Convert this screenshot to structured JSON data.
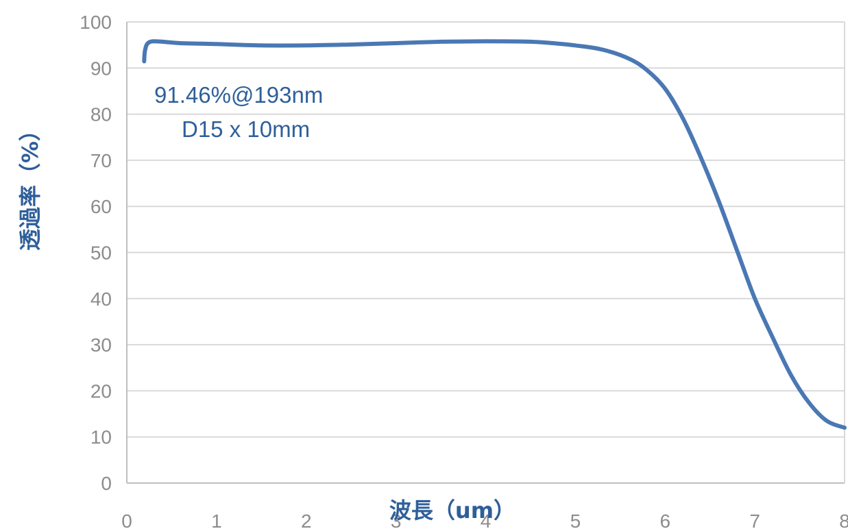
{
  "chart_data": {
    "type": "line",
    "title": "",
    "xlabel": "波長（um）",
    "ylabel": "透過率（%）",
    "xlim": [
      0,
      8
    ],
    "ylim": [
      0,
      100
    ],
    "x_ticks": [
      "0",
      "1",
      "2",
      "3",
      "4",
      "5",
      "6",
      "7",
      "8"
    ],
    "y_ticks": [
      "0",
      "10",
      "20",
      "30",
      "40",
      "50",
      "60",
      "70",
      "80",
      "90",
      "100"
    ],
    "grid": "horizontal",
    "series_color": "#4a78b4",
    "annotations": [
      "91.46%@193nm",
      "D15 x 10mm"
    ],
    "series": [
      {
        "x": [
          0.193,
          0.2,
          0.22,
          0.25,
          0.3,
          0.4,
          0.6,
          1.0,
          1.5,
          2.0,
          2.5,
          3.0,
          3.5,
          4.0,
          4.5,
          4.8,
          5.0,
          5.3,
          5.6,
          5.8,
          6.0,
          6.2,
          6.4,
          6.6,
          6.8,
          7.0,
          7.2,
          7.4,
          7.6,
          7.8,
          8.0
        ],
        "y": [
          91.46,
          93.5,
          95.0,
          95.6,
          95.8,
          95.7,
          95.4,
          95.2,
          94.9,
          94.9,
          95.1,
          95.4,
          95.7,
          95.8,
          95.7,
          95.3,
          94.9,
          94.0,
          92.0,
          89.5,
          85.5,
          79.0,
          70.5,
          61.0,
          50.5,
          40.0,
          31.5,
          23.5,
          17.5,
          13.5,
          12.0
        ]
      }
    ]
  }
}
